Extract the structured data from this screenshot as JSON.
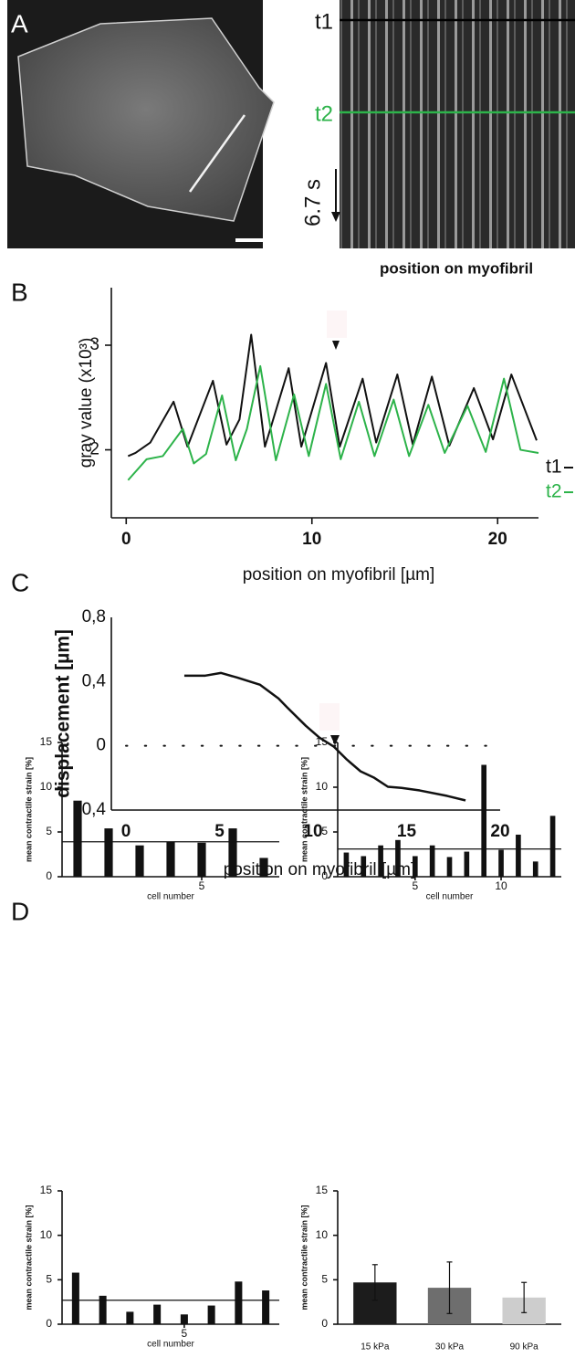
{
  "panel_labels": [
    "A",
    "B",
    "C",
    "D"
  ],
  "panel_a": {
    "t1": "t1",
    "t2": "t2",
    "time_label": "6.7 s",
    "x_label": "position on myofibril"
  },
  "chart_data": [
    {
      "type": "line",
      "x_label": "position on myofibril [µm]",
      "y_label": "gray value (x10³)",
      "xlim": [
        -0.8,
        22.2
      ],
      "xticks": [
        0,
        10,
        20
      ],
      "ylim": [
        1.35,
        3.55
      ],
      "yticks": [
        2,
        3
      ],
      "series": [
        {
          "name": "t1",
          "color": "#111111",
          "x": [
            0.1,
            0.5,
            1.3,
            2.55,
            3.3,
            4.67,
            5.4,
            6.1,
            6.73,
            7.47,
            8.75,
            9.43,
            10.76,
            11.5,
            12.73,
            13.46,
            14.6,
            15.43,
            16.46,
            17.4,
            18.72,
            19.75,
            20.74,
            22.1
          ],
          "values": [
            1.94,
            1.97,
            2.07,
            2.46,
            2.03,
            2.66,
            2.05,
            2.29,
            3.1,
            2.03,
            2.78,
            2.03,
            2.83,
            2.03,
            2.68,
            2.07,
            2.72,
            2.05,
            2.7,
            2.04,
            2.59,
            2.1,
            2.72,
            2.09
          ]
        },
        {
          "name": "t2",
          "color": "#2db34a",
          "x": [
            0.1,
            1.1,
            1.97,
            3.05,
            3.64,
            4.3,
            5.16,
            5.9,
            6.5,
            7.22,
            8.06,
            9.04,
            9.83,
            10.76,
            11.55,
            12.53,
            13.37,
            14.4,
            15.23,
            16.27,
            17.15,
            18.38,
            19.36,
            20.34,
            21.23,
            22.2
          ],
          "values": [
            1.71,
            1.91,
            1.94,
            2.2,
            1.87,
            1.96,
            2.52,
            1.9,
            2.2,
            2.8,
            1.9,
            2.53,
            1.94,
            2.63,
            1.91,
            2.46,
            1.94,
            2.48,
            1.94,
            2.43,
            1.97,
            2.42,
            1.98,
            2.68,
            2.0,
            1.97
          ]
        }
      ]
    },
    {
      "type": "line",
      "x_label": "position on myofibril [µm]",
      "y_label": "displacement [µm]",
      "xlim": [
        -0.78,
        20
      ],
      "xticks": [
        0,
        5,
        10,
        15,
        20
      ],
      "ylim": [
        -0.4,
        0.8
      ],
      "yticks": [
        {
          "value": 0.8,
          "label": "0,8"
        },
        {
          "value": 0.4,
          "label": "0,4"
        },
        0,
        {
          "value": -0.4,
          "label": "-0,4"
        }
      ],
      "hline": 0,
      "hline_style": "dotted",
      "series": [
        {
          "color": "#111111",
          "x": [
            3.12,
            4.24,
            5.07,
            5.95,
            7.17,
            8.15,
            8.63,
            9.61,
            10.34,
            11.12,
            11.8,
            12.54,
            13.27,
            14.0,
            14.73,
            15.7,
            17.17,
            18.15
          ],
          "values": [
            0.437,
            0.437,
            0.454,
            0.425,
            0.38,
            0.295,
            0.238,
            0.125,
            0.051,
            -0.006,
            -0.085,
            -0.159,
            -0.199,
            -0.255,
            -0.262,
            -0.278,
            -0.312,
            -0.34
          ]
        }
      ]
    },
    {
      "type": "bar",
      "x_label": "cell number",
      "y_label": "mean contractile strain [%]",
      "ylim": [
        0,
        15
      ],
      "yticks": [
        0,
        5,
        10,
        15
      ],
      "categories": [
        null,
        null,
        null,
        null,
        "5",
        null,
        null
      ],
      "values": [
        8.5,
        5.4,
        3.5,
        3.9,
        3.8,
        5.4,
        2.1
      ],
      "color": "#111111",
      "hline": 3.9
    },
    {
      "type": "bar",
      "x_label": "cell number",
      "y_label": "mean contractile strain [%]",
      "ylim": [
        0,
        15
      ],
      "yticks": [
        0,
        5,
        10,
        15
      ],
      "categories": [
        null,
        null,
        null,
        null,
        "5",
        null,
        null,
        null,
        null,
        "10",
        null,
        null,
        null
      ],
      "values": [
        2.7,
        2.3,
        3.5,
        4.1,
        2.3,
        3.5,
        2.2,
        2.8,
        12.5,
        3.0,
        4.7,
        1.7,
        6.8
      ],
      "color": "#111111",
      "hline": 3.1
    },
    {
      "type": "bar",
      "x_label": "cell number",
      "y_label": "mean contractile strain [%]",
      "ylim": [
        0,
        15
      ],
      "yticks": [
        0,
        5,
        10,
        15
      ],
      "categories": [
        null,
        null,
        null,
        null,
        "5",
        null,
        null,
        null
      ],
      "values": [
        5.8,
        3.2,
        1.4,
        2.2,
        1.1,
        2.1,
        4.8,
        3.8
      ],
      "color": "#111111",
      "hline": 2.7
    },
    {
      "type": "bar",
      "y_label": "mean contractile strain [%]",
      "ylim": [
        0,
        15
      ],
      "yticks": [
        0,
        5,
        10,
        15
      ],
      "categories": [
        "15 kPa",
        "30 kPa",
        "90 kPa"
      ],
      "values": [
        4.7,
        4.1,
        3.0
      ],
      "errors": [
        2.0,
        2.9,
        1.7
      ],
      "colors": [
        "#1c1c1c",
        "#6e6e6e",
        "#cdcdcd"
      ]
    }
  ]
}
